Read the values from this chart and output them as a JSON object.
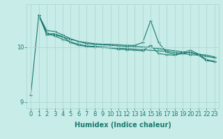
{
  "xlabel": "Humidex (Indice chaleur)",
  "ylabel": "",
  "bg_color": "#c8ece8",
  "line_color": "#1a7a6e",
  "grid_color": "#b0d8d2",
  "xlim": [
    -0.5,
    23.5
  ],
  "ylim": [
    8.88,
    10.78
  ],
  "xticks": [
    0,
    1,
    2,
    3,
    4,
    5,
    6,
    7,
    8,
    9,
    10,
    11,
    12,
    13,
    14,
    15,
    16,
    17,
    18,
    19,
    20,
    21,
    22,
    23
  ],
  "yticks": [
    9,
    10
  ],
  "series": [
    {
      "x": [
        0,
        1,
        2,
        3,
        4,
        5,
        6,
        7,
        8,
        9,
        10,
        11,
        12,
        13,
        14,
        15,
        16,
        17,
        18,
        19,
        20,
        21,
        22,
        23
      ],
      "y": [
        9.12,
        10.58,
        10.22,
        10.22,
        10.18,
        10.14,
        10.1,
        10.08,
        10.06,
        10.05,
        10.05,
        10.04,
        10.03,
        10.03,
        10.08,
        10.48,
        10.08,
        9.9,
        9.87,
        9.9,
        9.94,
        9.87,
        9.77,
        9.74
      ]
    },
    {
      "x": [
        1,
        2,
        3,
        4,
        5,
        6,
        7,
        8,
        9,
        10,
        11,
        12,
        13,
        14,
        15,
        16,
        17,
        18,
        19,
        20,
        21,
        22,
        23
      ],
      "y": [
        10.58,
        10.24,
        10.24,
        10.19,
        10.08,
        10.03,
        10.01,
        10.0,
        9.99,
        9.98,
        9.96,
        9.95,
        9.94,
        9.93,
        10.03,
        9.88,
        9.86,
        9.85,
        9.88,
        9.91,
        9.85,
        9.75,
        9.73
      ]
    },
    {
      "x": [
        1,
        2,
        3,
        4,
        5,
        6,
        7,
        8,
        9,
        10,
        11,
        12,
        13,
        14,
        15,
        16,
        17,
        18,
        19,
        20,
        21,
        22,
        23
      ],
      "y": [
        10.58,
        10.3,
        10.28,
        10.22,
        10.15,
        10.1,
        10.06,
        10.05,
        10.04,
        10.03,
        10.02,
        10.01,
        10.01,
        10.0,
        9.99,
        9.97,
        9.95,
        9.93,
        9.91,
        9.89,
        9.87,
        9.85,
        9.82
      ]
    },
    {
      "x": [
        1,
        2,
        3,
        4,
        5,
        6,
        7,
        8,
        9,
        10,
        11,
        12,
        13,
        14,
        15,
        16,
        17,
        18,
        19,
        20,
        21,
        22,
        23
      ],
      "y": [
        10.58,
        10.26,
        10.2,
        10.14,
        10.09,
        10.05,
        10.02,
        10.01,
        10.0,
        9.99,
        9.98,
        9.97,
        9.96,
        9.95,
        9.94,
        9.93,
        9.92,
        9.9,
        9.88,
        9.86,
        9.85,
        9.83,
        9.8
      ]
    }
  ],
  "marker": "+",
  "markersize": 3,
  "linewidth": 0.8,
  "xlabel_fontsize": 7,
  "tick_fontsize": 6
}
